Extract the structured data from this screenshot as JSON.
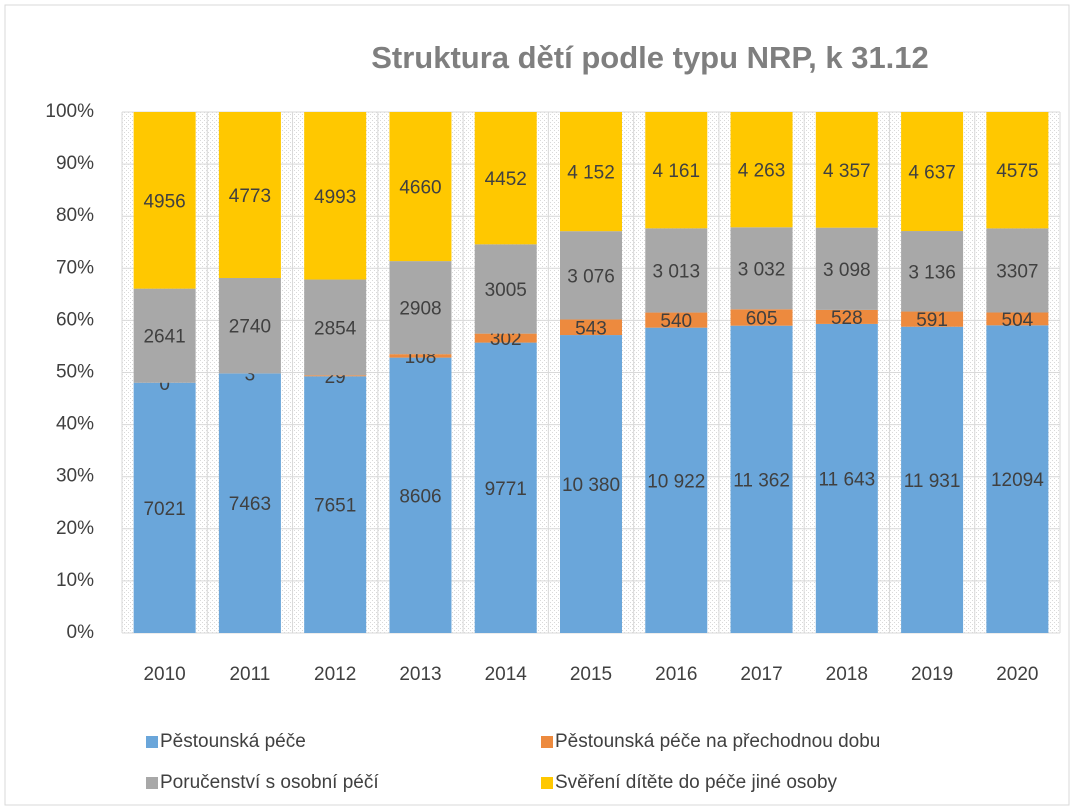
{
  "chart_data": {
    "type": "bar",
    "stacking": "percent",
    "title": "Struktura dětí podle typu  NRP, k  31.12",
    "categories": [
      "2010",
      "2011",
      "2012",
      "2013",
      "2014",
      "2015",
      "2016",
      "2017",
      "2018",
      "2019",
      "2020"
    ],
    "ylim": [
      0,
      100
    ],
    "yticks": [
      {
        "value": 0,
        "label": "0%"
      },
      {
        "value": 10,
        "label": "10%"
      },
      {
        "value": 20,
        "label": "20%"
      },
      {
        "value": 30,
        "label": "30%"
      },
      {
        "value": 40,
        "label": "40%"
      },
      {
        "value": 50,
        "label": "50%"
      },
      {
        "value": 60,
        "label": "60%"
      },
      {
        "value": 70,
        "label": "70%"
      },
      {
        "value": 80,
        "label": "80%"
      },
      {
        "value": 90,
        "label": "90%"
      },
      {
        "value": 100,
        "label": "100%"
      }
    ],
    "grid": true,
    "series": [
      {
        "name": "Pěstounská péče",
        "color": "#6aa6da",
        "values": [
          7021,
          7463,
          7651,
          8606,
          9771,
          10380,
          10922,
          11362,
          11643,
          11931,
          12094
        ],
        "value_labels": [
          "7021",
          "7463",
          "7651",
          "8606",
          "9771",
          "10 380",
          "10 922",
          "11 362",
          "11 643",
          "11 931",
          "12094"
        ]
      },
      {
        "name": "Pěstounská péče na přechodnou dobu",
        "color": "#ed8a3e",
        "values": [
          0,
          3,
          29,
          108,
          302,
          543,
          540,
          605,
          528,
          591,
          504
        ]
      },
      {
        "name": "Poručenství s osobní péčí",
        "color": "#a8a8a8",
        "values": [
          2641,
          2740,
          2854,
          2908,
          3005,
          3076,
          3013,
          3032,
          3098,
          3136,
          3307
        ],
        "value_labels": [
          "2641",
          "2740",
          "2854",
          "2908",
          "3005",
          "3 076",
          "3 013",
          "3 032",
          "3 098",
          "3 136",
          "3307"
        ]
      },
      {
        "name": "Svěření dítěte do péče jiné osoby",
        "color": "#ffc800",
        "values": [
          4956,
          4773,
          4993,
          4660,
          4452,
          4152,
          4161,
          4263,
          4357,
          4637,
          4575
        ],
        "value_labels": [
          "4956",
          "4773",
          "4993",
          "4660",
          "4452",
          "4 152",
          "4 161",
          "4 263",
          "4 357",
          "4 637",
          "4575"
        ]
      }
    ]
  }
}
